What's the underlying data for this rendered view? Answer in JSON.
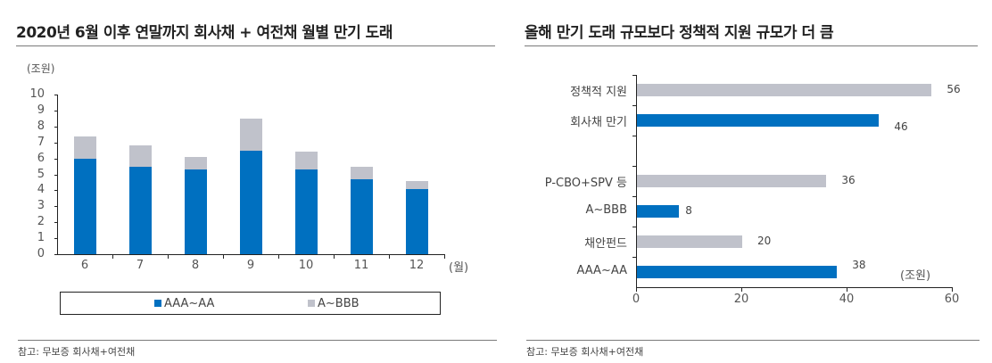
{
  "left": {
    "title": "2020년 6월 이후 연말까지 회사채 + 여전채 월별 만기 도래",
    "y_unit": "(조원)",
    "x_unit": "(월)",
    "yticks": [
      "10",
      "9",
      "8",
      "7",
      "6",
      "5",
      "4",
      "3",
      "2",
      "1",
      "0"
    ],
    "legend": [
      {
        "label": "AAA~AA",
        "color": "#0070c0"
      },
      {
        "label": "A~BBB",
        "color": "#c0c2cb"
      }
    ],
    "note": "참고: 무보증 회사채+여전채"
  },
  "right": {
    "title": "올해 만기 도래 규모보다 정책적 지원 규모가 더 큼",
    "x_unit": "(조원)",
    "xticks": [
      "0",
      "20",
      "40",
      "60"
    ],
    "note": "참고: 무보증 회사채+여전채"
  },
  "chart_data": [
    {
      "type": "bar",
      "stacked": true,
      "title": "2020년 6월 이후 연말까지 회사채 + 여전채 월별 만기 도래",
      "xlabel": "(월)",
      "ylabel": "(조원)",
      "categories": [
        "6",
        "7",
        "8",
        "9",
        "10",
        "11",
        "12"
      ],
      "series": [
        {
          "name": "AAA~AA",
          "color": "#0070c0",
          "values": [
            6.0,
            5.5,
            5.3,
            6.5,
            5.3,
            4.7,
            4.1
          ]
        },
        {
          "name": "A~BBB",
          "color": "#c0c2cb",
          "values": [
            1.4,
            1.3,
            0.8,
            2.0,
            1.1,
            0.8,
            0.5
          ]
        }
      ],
      "ylim": [
        0,
        10
      ],
      "legend_position": "bottom",
      "grid": false
    },
    {
      "type": "bar",
      "orientation": "horizontal",
      "title": "올해 만기 도래 규모보다 정책적 지원 규모가 더 큼",
      "xlabel": "(조원)",
      "categories": [
        "정책적 지원",
        "회사채 만기",
        "",
        "P-CBO+SPV 등",
        "A~BBB",
        "채안펀드",
        "AAA~AA"
      ],
      "values": [
        56,
        46,
        null,
        36,
        8,
        20,
        38
      ],
      "colors": [
        "#c0c2cb",
        "#0070c0",
        null,
        "#c0c2cb",
        "#0070c0",
        "#c0c2cb",
        "#0070c0"
      ],
      "xlim": [
        0,
        60
      ],
      "grid": false
    }
  ]
}
